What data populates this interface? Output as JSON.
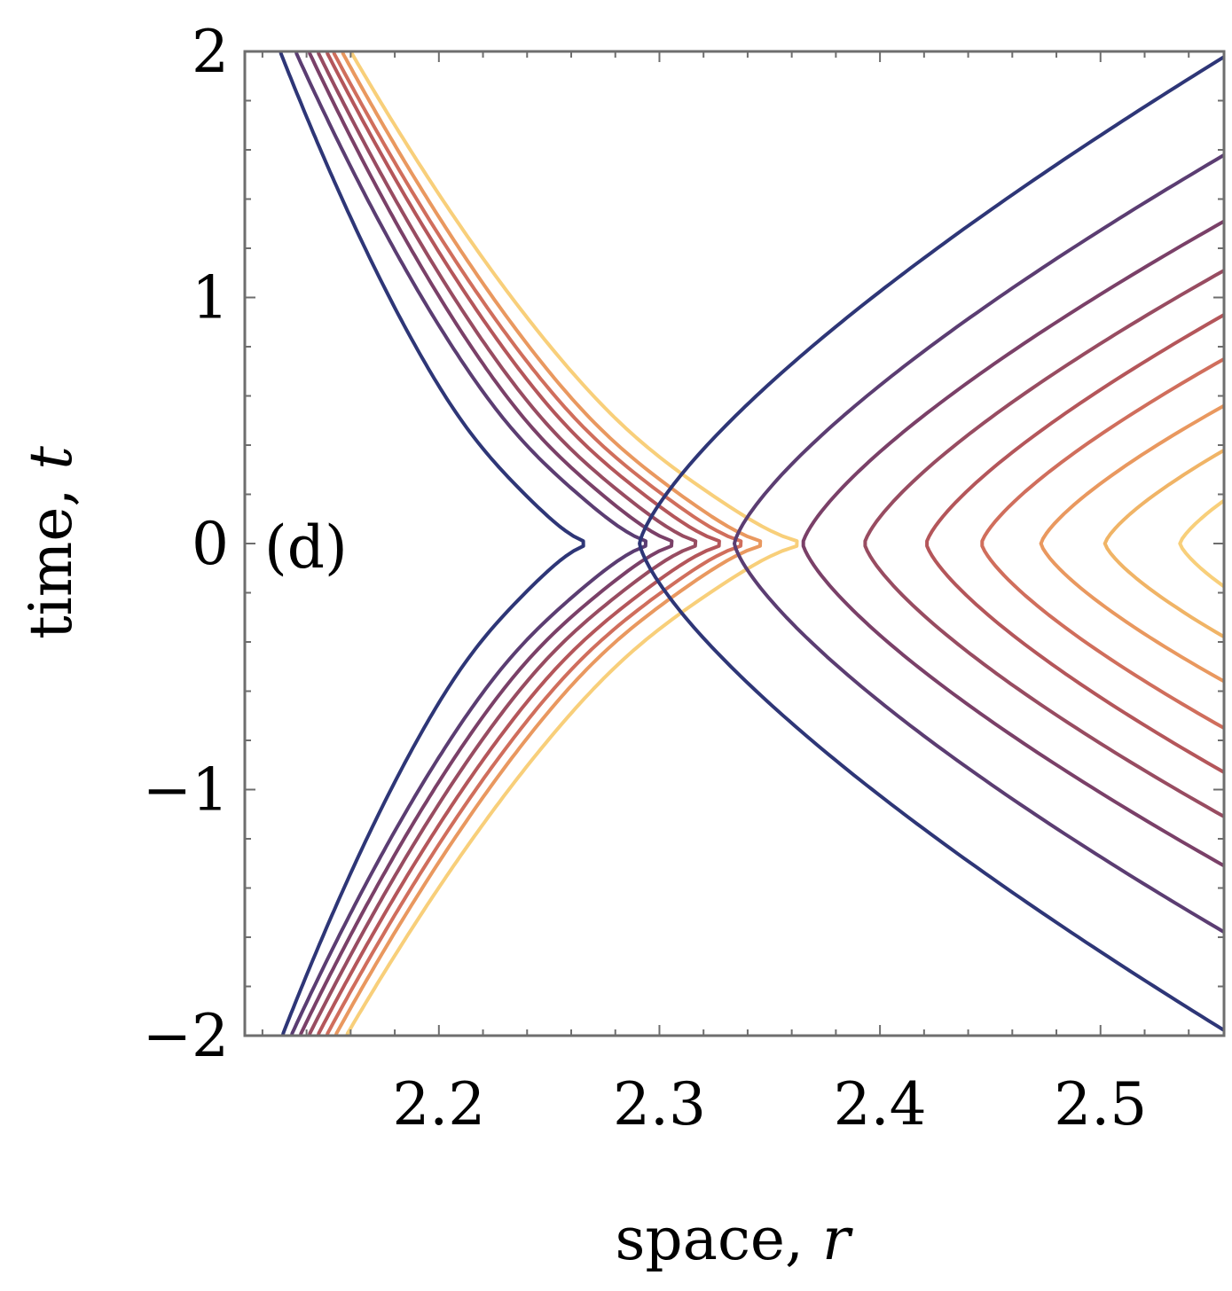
{
  "chart_data": {
    "type": "contour",
    "panel_label": "(d)",
    "xlabel": {
      "text": "space, ",
      "var": "r"
    },
    "ylabel": {
      "text": "time, ",
      "var": "t"
    },
    "xlim": [
      2.112,
      2.556
    ],
    "ylim": [
      -2,
      2
    ],
    "xticks": [
      {
        "value": 2.2,
        "label": "2.2"
      },
      {
        "value": 2.3,
        "label": "2.3"
      },
      {
        "value": 2.4,
        "label": "2.4"
      },
      {
        "value": 2.5,
        "label": "2.5"
      }
    ],
    "yticks": [
      {
        "value": 2,
        "label": "2"
      },
      {
        "value": 1,
        "label": "1"
      },
      {
        "value": 0,
        "label": "0"
      },
      {
        "value": -1,
        "label": "−1"
      },
      {
        "value": -2,
        "label": "−2"
      }
    ],
    "frame_color": "#6e6e6e",
    "left_family": {
      "description": "contours crossing from top-left to bottom-left, bulging right near t=0",
      "levels": [
        {
          "name": "level-1",
          "color": "#2e3677",
          "vertex_r": 2.27,
          "top_r": 2.128,
          "bottom_r": 2.129
        },
        {
          "name": "level-2",
          "color": "#5b3d72",
          "vertex_r": 2.299,
          "top_r": 2.135,
          "bottom_r": 2.133
        },
        {
          "name": "level-3",
          "color": "#7a4068",
          "vertex_r": 2.311,
          "top_r": 2.141,
          "bottom_r": 2.137
        },
        {
          "name": "level-4",
          "color": "#984c61",
          "vertex_r": 2.322,
          "top_r": 2.145,
          "bottom_r": 2.141
        },
        {
          "name": "level-5",
          "color": "#b4565a",
          "vertex_r": 2.333,
          "top_r": 2.149,
          "bottom_r": 2.145
        },
        {
          "name": "level-6",
          "color": "#d06e5c",
          "vertex_r": 2.343,
          "top_r": 2.152,
          "bottom_r": 2.149
        },
        {
          "name": "level-7",
          "color": "#e9985f",
          "vertex_r": 2.352,
          "top_r": 2.156,
          "bottom_r": 2.153
        },
        {
          "name": "level-8",
          "color": "#f8cf7a",
          "vertex_r": 2.369,
          "top_r": 2.16,
          "bottom_r": 2.158
        }
      ]
    },
    "right_family": {
      "description": "nested contours opening to the right with vertex at t=0",
      "levels": [
        {
          "name": "level-1",
          "color": "#2e3677",
          "vertex_r": 2.291,
          "end_t": 2.0
        },
        {
          "name": "level-2",
          "color": "#5b3d72",
          "vertex_r": 2.334,
          "end_t": 1.6
        },
        {
          "name": "level-3",
          "color": "#7a4068",
          "vertex_r": 2.365,
          "end_t": 1.33
        },
        {
          "name": "level-4",
          "color": "#984c61",
          "vertex_r": 2.393,
          "end_t": 1.13
        },
        {
          "name": "level-5",
          "color": "#b4565a",
          "vertex_r": 2.421,
          "end_t": 0.95
        },
        {
          "name": "level-6",
          "color": "#d06e5c",
          "vertex_r": 2.446,
          "end_t": 0.77
        },
        {
          "name": "level-7",
          "color": "#e9985f",
          "vertex_r": 2.473,
          "end_t": 0.58
        },
        {
          "name": "level-8",
          "color": "#f0b466",
          "vertex_r": 2.502,
          "end_t": 0.4
        },
        {
          "name": "level-9",
          "color": "#f8cf7a",
          "vertex_r": 2.536,
          "end_t": 0.2
        }
      ]
    }
  }
}
